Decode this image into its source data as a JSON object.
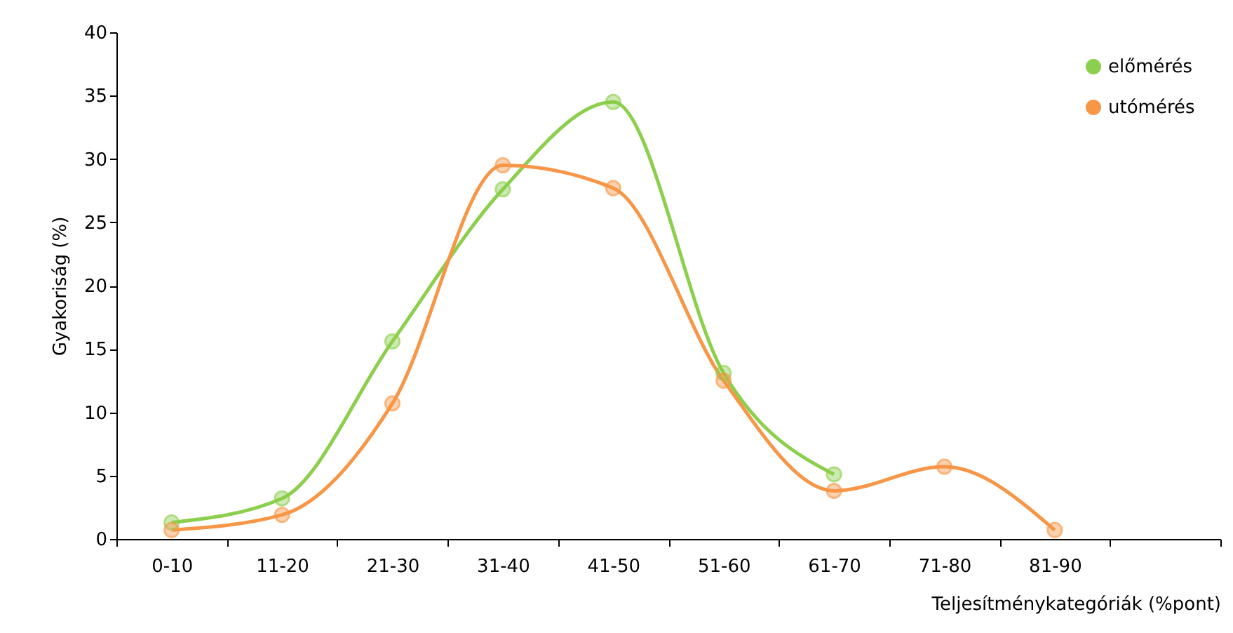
{
  "chart_data": {
    "type": "line",
    "xlabel": "Teljesítménykategóriák (%pont)",
    "ylabel": "Gyakoriság (%)",
    "categories": [
      "0-10",
      "11-20",
      "21-30",
      "31-40",
      "41-50",
      "51-60",
      "61-70",
      "71-80",
      "81-90",
      null
    ],
    "series": [
      {
        "name": "előmérés",
        "color": "#8ccf4d",
        "values": [
          1.3,
          3.2,
          15.6,
          27.6,
          34.5,
          13.1,
          5.1,
          null,
          null,
          null
        ]
      },
      {
        "name": "utómérés",
        "color": "#f79646",
        "values": [
          0.7,
          1.9,
          10.7,
          29.5,
          27.7,
          12.5,
          3.8,
          5.7,
          0.7,
          null
        ]
      }
    ],
    "ylim": [
      0,
      40
    ],
    "yticks": [
      0,
      5,
      10,
      15,
      20,
      25,
      30,
      35,
      40
    ],
    "grid": false,
    "legend": "top right",
    "marker": "circle",
    "line_style": "solid"
  }
}
